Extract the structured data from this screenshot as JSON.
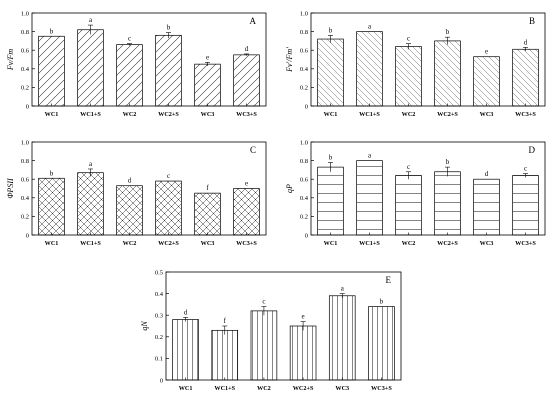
{
  "chart_data": [
    {
      "type": "bar",
      "panel": "A",
      "ylabel": "Fv/Fm",
      "ylim": [
        0,
        1.0
      ],
      "yticks": [
        "0",
        "0.2",
        "0.4",
        "0.6",
        "0.8",
        "1.0"
      ],
      "pattern": "diag-right",
      "categories": [
        "WC1",
        "WC1+S",
        "WC2",
        "WC2+S",
        "WC3",
        "WC3+S"
      ],
      "values": [
        0.75,
        0.82,
        0.66,
        0.76,
        0.45,
        0.55
      ],
      "errors": [
        0.0,
        0.05,
        0.01,
        0.03,
        0.02,
        0.01
      ],
      "letters": [
        "b",
        "a",
        "c",
        "b",
        "e",
        "d"
      ]
    },
    {
      "type": "bar",
      "panel": "B",
      "ylabel": "Fv'/Fm'",
      "ylim": [
        0,
        1.0
      ],
      "yticks": [
        "0",
        "0.2",
        "0.4",
        "0.6",
        "0.8",
        "1.0"
      ],
      "pattern": "diag-left",
      "categories": [
        "WC1",
        "WC1+S",
        "WC2",
        "WC2+S",
        "WC3",
        "WC3+S"
      ],
      "values": [
        0.72,
        0.8,
        0.64,
        0.7,
        0.53,
        0.61
      ],
      "errors": [
        0.04,
        0.0,
        0.03,
        0.04,
        0.0,
        0.02
      ],
      "letters": [
        "b",
        "a",
        "c",
        "b",
        "e",
        "d"
      ]
    },
    {
      "type": "bar",
      "panel": "C",
      "ylabel": "ΦPSII",
      "ylim": [
        0,
        1.0
      ],
      "yticks": [
        "0",
        "0.2",
        "0.4",
        "0.6",
        "0.8",
        "1.0"
      ],
      "pattern": "cross",
      "categories": [
        "WC1",
        "WC1+S",
        "WC2",
        "WC2+S",
        "WC3",
        "WC3+S"
      ],
      "values": [
        0.61,
        0.67,
        0.53,
        0.58,
        0.45,
        0.5
      ],
      "errors": [
        0.0,
        0.04,
        0.0,
        0.0,
        0.0,
        0.0
      ],
      "letters": [
        "b",
        "a",
        "d",
        "c",
        "f",
        "e"
      ]
    },
    {
      "type": "bar",
      "panel": "D",
      "ylabel": "qP",
      "ylim": [
        0,
        1.0
      ],
      "yticks": [
        "0",
        "0.2",
        "0.4",
        "0.6",
        "0.8",
        "1.0"
      ],
      "pattern": "horizontal",
      "categories": [
        "WC1",
        "WC1+S",
        "WC2",
        "WC2+S",
        "WC3",
        "WC3+S"
      ],
      "values": [
        0.73,
        0.8,
        0.64,
        0.68,
        0.6,
        0.64
      ],
      "errors": [
        0.05,
        0.0,
        0.04,
        0.05,
        0.0,
        0.02
      ],
      "letters": [
        "b",
        "a",
        "c",
        "b",
        "d",
        "c"
      ]
    },
    {
      "type": "bar",
      "panel": "E",
      "ylabel": "qN",
      "ylim": [
        0,
        0.5
      ],
      "yticks": [
        "0",
        "0.1",
        "0.2",
        "0.3",
        "0.4",
        "0.5"
      ],
      "pattern": "vertical",
      "categories": [
        "WC1",
        "WC1+S",
        "WC2",
        "WC2+S",
        "WC3",
        "WC3+S"
      ],
      "values": [
        0.28,
        0.23,
        0.32,
        0.25,
        0.39,
        0.34
      ],
      "errors": [
        0.01,
        0.02,
        0.02,
        0.02,
        0.01,
        0.0
      ],
      "letters": [
        "d",
        "f",
        "c",
        "e",
        "a",
        "b"
      ]
    }
  ]
}
